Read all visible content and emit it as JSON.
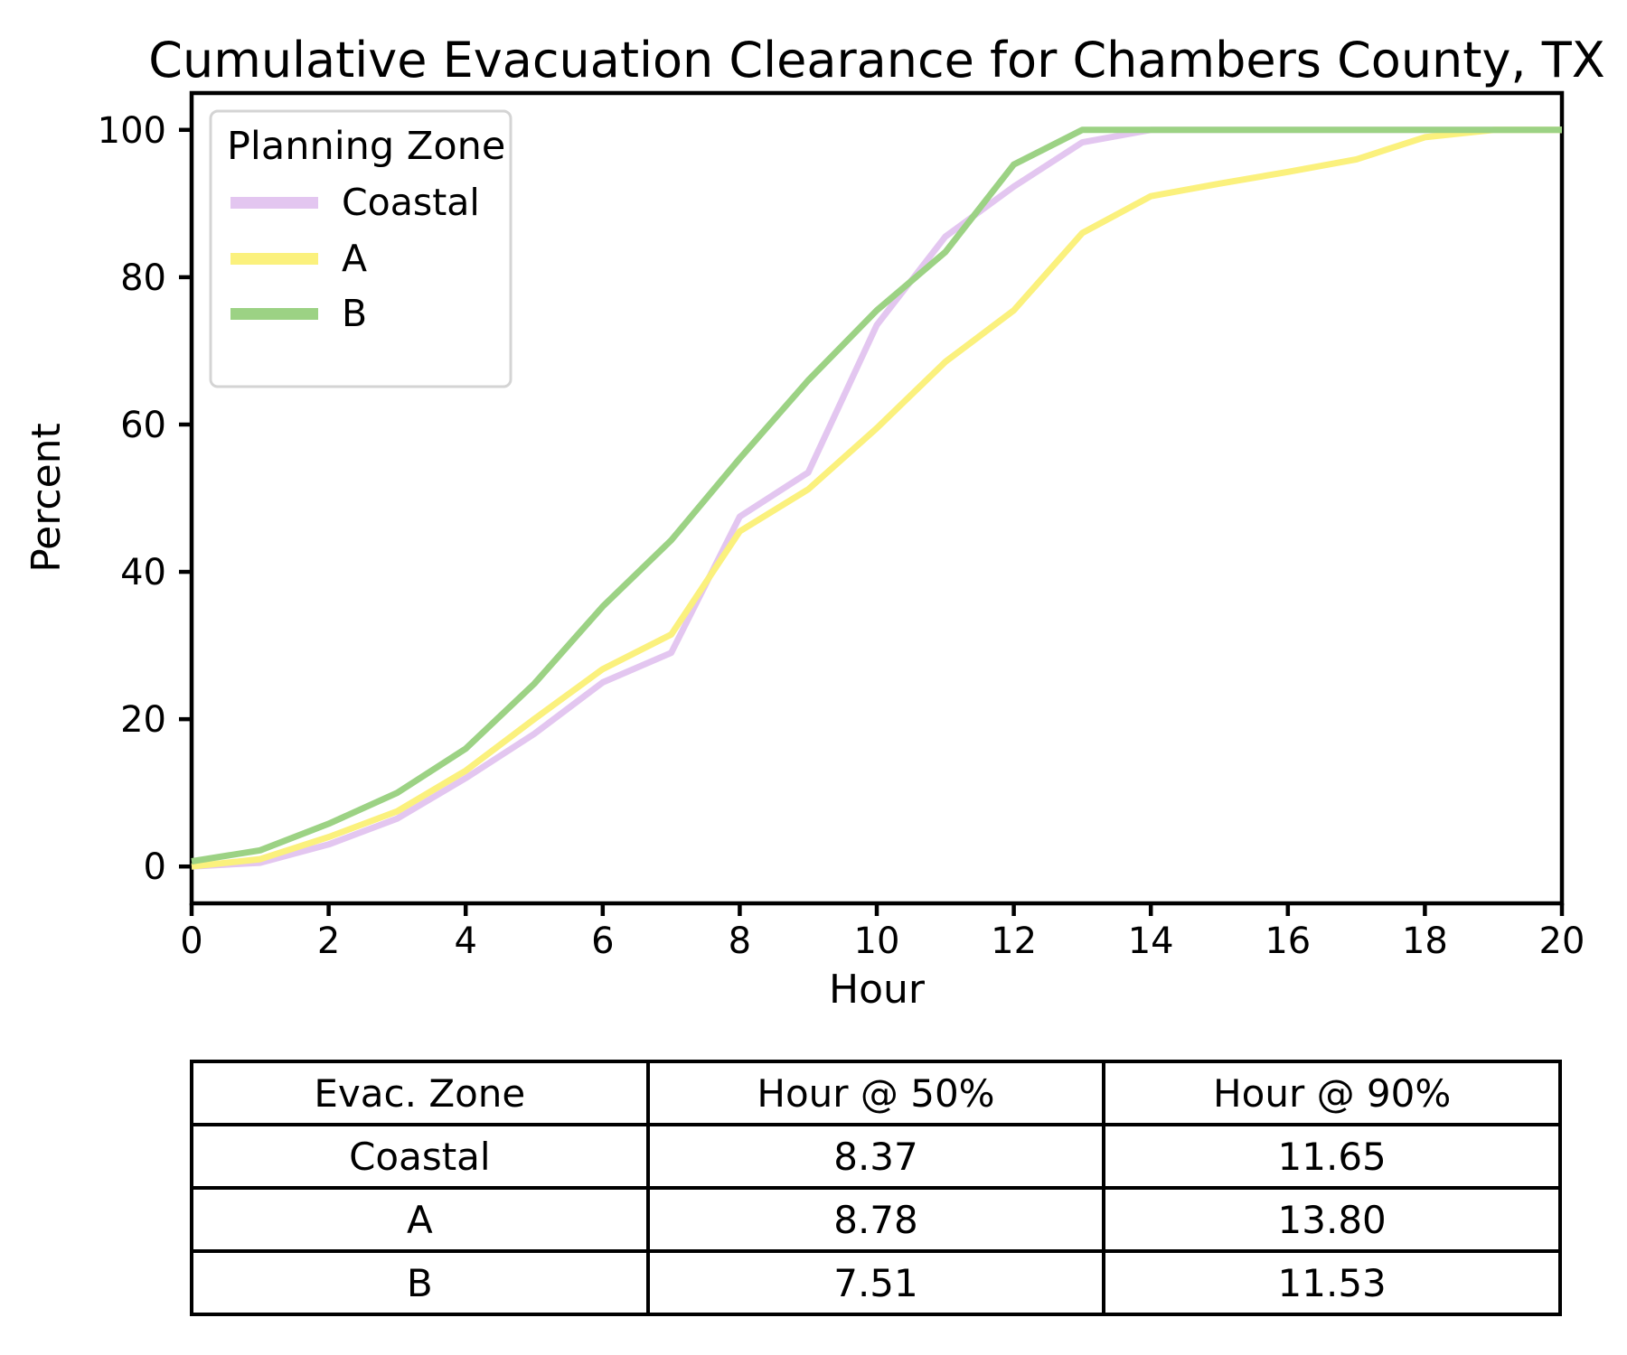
{
  "figure_title": "Cumulative Evacuation Clearance for Chambers County, TX",
  "chart_data": {
    "type": "line",
    "title": "Cumulative Evacuation Clearance for Chambers County, TX",
    "xlabel": "Hour",
    "ylabel": "Percent",
    "xlim": [
      0,
      20
    ],
    "ylim": [
      -5,
      105
    ],
    "x_ticks": [
      0,
      2,
      4,
      6,
      8,
      10,
      12,
      14,
      16,
      18,
      20
    ],
    "y_ticks": [
      0,
      20,
      40,
      60,
      80,
      100
    ],
    "grid": false,
    "legend_title": "Planning Zone",
    "legend_position": "upper-left",
    "x": [
      0,
      1,
      2,
      3,
      4,
      5,
      6,
      7,
      8,
      9,
      10,
      11,
      12,
      13,
      14,
      15,
      16,
      17,
      18,
      19,
      20
    ],
    "series": [
      {
        "name": "Coastal",
        "color": "#e3c6f0",
        "values": [
          0,
          0.5,
          3,
          6.5,
          12,
          18,
          25,
          29,
          47.5,
          53.5,
          73.5,
          85.5,
          92.3,
          98.3,
          100,
          100,
          100,
          100,
          100,
          100,
          100
        ]
      },
      {
        "name": "A",
        "color": "#fbf17d",
        "values": [
          0,
          1,
          4,
          7.5,
          13,
          20,
          26.8,
          31.5,
          45.5,
          51.2,
          59.5,
          68.5,
          75.5,
          86,
          91,
          92.7,
          94.3,
          96,
          99,
          100,
          100
        ]
      },
      {
        "name": "B",
        "color": "#9cd284",
        "values": [
          0.7,
          2.2,
          5.8,
          10,
          16,
          24.8,
          35.3,
          44.3,
          55.4,
          66,
          75.5,
          83.4,
          95.3,
          100,
          100,
          100,
          100,
          100,
          100,
          100,
          100
        ]
      }
    ]
  },
  "table": {
    "headers": [
      "Evac. Zone",
      "Hour @ 50%",
      "Hour @ 90%"
    ],
    "rows": [
      [
        "Coastal",
        "8.37",
        "11.65"
      ],
      [
        "A",
        "8.78",
        "13.80"
      ],
      [
        "B",
        "7.51",
        "11.53"
      ]
    ]
  },
  "colors": {
    "axis": "#000000",
    "legend_border": "#d4d4d4",
    "background": "#ffffff"
  }
}
